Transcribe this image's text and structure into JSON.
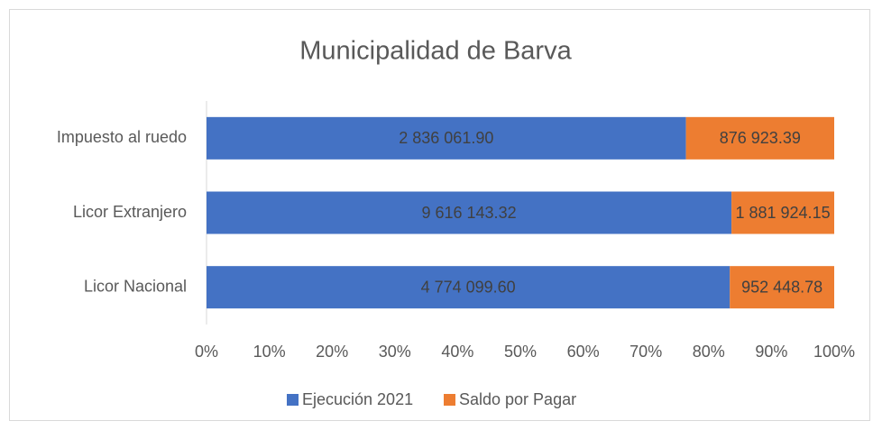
{
  "chart_data": {
    "type": "bar",
    "orientation": "horizontal",
    "stacking": "percent",
    "title": "Municipalidad de Barva",
    "categories": [
      "Impuesto al ruedo",
      "Licor Extranjero",
      "Licor Nacional"
    ],
    "series": [
      {
        "name": "Ejecución 2021",
        "color": "#4472c4",
        "values": [
          2836061.9,
          9616143.32,
          4774099.6
        ],
        "value_labels": [
          "2 836 061.90",
          "9 616 143.32",
          "4 774 099.60"
        ]
      },
      {
        "name": "Saldo por Pagar",
        "color": "#ed7d31",
        "values": [
          876923.39,
          1881924.15,
          952448.78
        ],
        "value_labels": [
          "876 923.39",
          "1 881 924.15",
          "952 448.78"
        ]
      }
    ],
    "xlim": [
      0,
      100
    ],
    "xticks": [
      {
        "value": 0,
        "label": "0%"
      },
      {
        "value": 10,
        "label": "10%"
      },
      {
        "value": 20,
        "label": "20%"
      },
      {
        "value": 30,
        "label": "30%"
      },
      {
        "value": 40,
        "label": "40%"
      },
      {
        "value": 50,
        "label": "50%"
      },
      {
        "value": 60,
        "label": "60%"
      },
      {
        "value": 70,
        "label": "70%"
      },
      {
        "value": 80,
        "label": "80%"
      },
      {
        "value": 90,
        "label": "90%"
      },
      {
        "value": 100,
        "label": "100%"
      }
    ],
    "grid": false,
    "legend": "bottom"
  }
}
